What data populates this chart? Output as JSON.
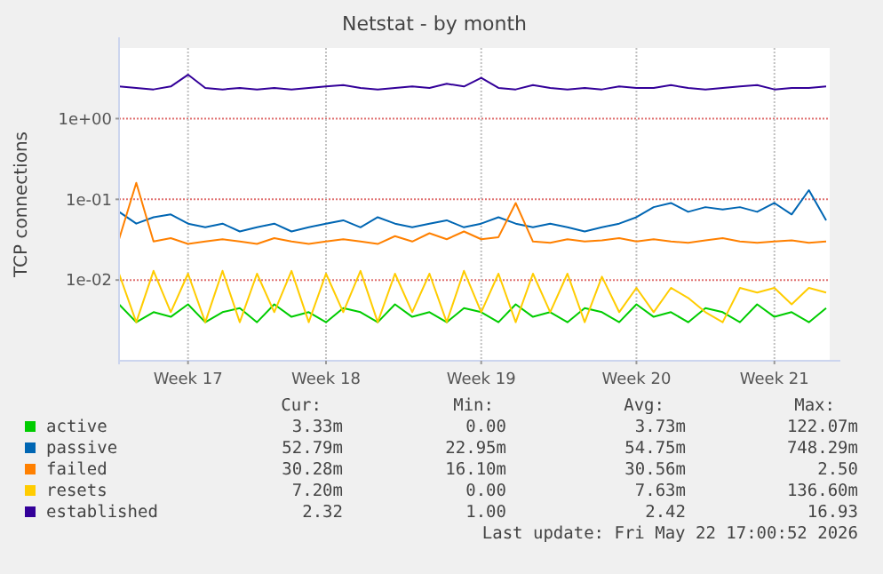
{
  "chart_data": {
    "type": "line",
    "title": "Netstat - by month",
    "ylabel": "TCP connections",
    "log": true,
    "grid": "xy",
    "legend": "bottom",
    "marker": "none",
    "line_style": "solid",
    "ylim": [
      0.001,
      7.5
    ],
    "categories": [
      null,
      null,
      null,
      null,
      "Week 17",
      null,
      null,
      null,
      null,
      null,
      null,
      null,
      "Week 18",
      null,
      null,
      null,
      null,
      null,
      null,
      null,
      null,
      "Week 19",
      null,
      null,
      null,
      null,
      null,
      null,
      null,
      null,
      "Week 20",
      null,
      null,
      null,
      null,
      null,
      null,
      null,
      "Week 21",
      null,
      null,
      null
    ],
    "yticks": [
      {
        "value": 0.01,
        "label": "1e-02"
      },
      {
        "value": 0.1,
        "label": "1e-01"
      },
      {
        "value": 1,
        "label": "1e+00"
      }
    ],
    "series": [
      {
        "name": "active",
        "color": "#00cc00",
        "values": [
          0.005,
          0.003,
          0.004,
          0.0035,
          0.005,
          0.003,
          0.004,
          0.0045,
          0.003,
          0.005,
          0.0035,
          0.004,
          0.003,
          0.0045,
          0.004,
          0.003,
          0.005,
          0.0035,
          0.004,
          0.003,
          0.0045,
          0.004,
          0.003,
          0.005,
          0.0035,
          0.004,
          0.003,
          0.0045,
          0.004,
          0.003,
          0.005,
          0.0035,
          0.004,
          0.003,
          0.0045,
          0.004,
          0.003,
          0.005,
          0.0035,
          0.004,
          0.003,
          0.0045
        ]
      },
      {
        "name": "passive",
        "color": "#0066b3",
        "values": [
          0.07,
          0.05,
          0.06,
          0.065,
          0.05,
          0.045,
          0.05,
          0.04,
          0.045,
          0.05,
          0.04,
          0.045,
          0.05,
          0.055,
          0.045,
          0.06,
          0.05,
          0.045,
          0.05,
          0.055,
          0.045,
          0.05,
          0.06,
          0.05,
          0.045,
          0.05,
          0.045,
          0.04,
          0.045,
          0.05,
          0.06,
          0.08,
          0.09,
          0.07,
          0.08,
          0.075,
          0.08,
          0.07,
          0.09,
          0.065,
          0.13,
          0.055
        ]
      },
      {
        "name": "failed",
        "color": "#ff8000",
        "values": [
          0.032,
          0.16,
          0.03,
          0.033,
          0.028,
          0.03,
          0.032,
          0.03,
          0.028,
          0.033,
          0.03,
          0.028,
          0.03,
          0.032,
          0.03,
          0.028,
          0.035,
          0.03,
          0.038,
          0.032,
          0.04,
          0.032,
          0.034,
          0.09,
          0.03,
          0.029,
          0.032,
          0.03,
          0.031,
          0.033,
          0.03,
          0.032,
          0.03,
          0.029,
          0.031,
          0.033,
          0.03,
          0.029,
          0.03,
          0.031,
          0.029,
          0.03
        ]
      },
      {
        "name": "resets",
        "color": "#ffcc00",
        "values": [
          0.012,
          0.003,
          0.013,
          0.004,
          0.012,
          0.003,
          0.013,
          0.003,
          0.012,
          0.004,
          0.013,
          0.003,
          0.012,
          0.004,
          0.013,
          0.003,
          0.012,
          0.004,
          0.012,
          0.003,
          0.013,
          0.004,
          0.012,
          0.003,
          0.012,
          0.004,
          0.012,
          0.003,
          0.011,
          0.004,
          0.008,
          0.004,
          0.008,
          0.006,
          0.004,
          0.003,
          0.008,
          0.007,
          0.008,
          0.005,
          0.008,
          0.007
        ]
      },
      {
        "name": "established",
        "color": "#330099",
        "values": [
          2.5,
          2.4,
          2.3,
          2.5,
          3.5,
          2.4,
          2.3,
          2.4,
          2.3,
          2.4,
          2.3,
          2.4,
          2.5,
          2.6,
          2.4,
          2.3,
          2.4,
          2.5,
          2.4,
          2.7,
          2.5,
          3.2,
          2.4,
          2.3,
          2.6,
          2.4,
          2.3,
          2.4,
          2.3,
          2.5,
          2.4,
          2.4,
          2.6,
          2.4,
          2.3,
          2.4,
          2.5,
          2.6,
          2.3,
          2.4,
          2.4,
          2.5
        ]
      }
    ],
    "annotations": [
      "Cur:",
      "Min:",
      "Avg:",
      "Max:",
      "3.33m",
      "0.00",
      "3.73m",
      "122.07m",
      "52.79m",
      "22.95m",
      "54.75m",
      "748.29m",
      "30.28m",
      "16.10m",
      "30.56m",
      "2.50",
      "7.20m",
      "0.00",
      "7.63m",
      "136.60m",
      "2.32",
      "1.00",
      "2.42",
      "16.93",
      "Last update: Fri May 22 17:00:52 2026"
    ]
  }
}
